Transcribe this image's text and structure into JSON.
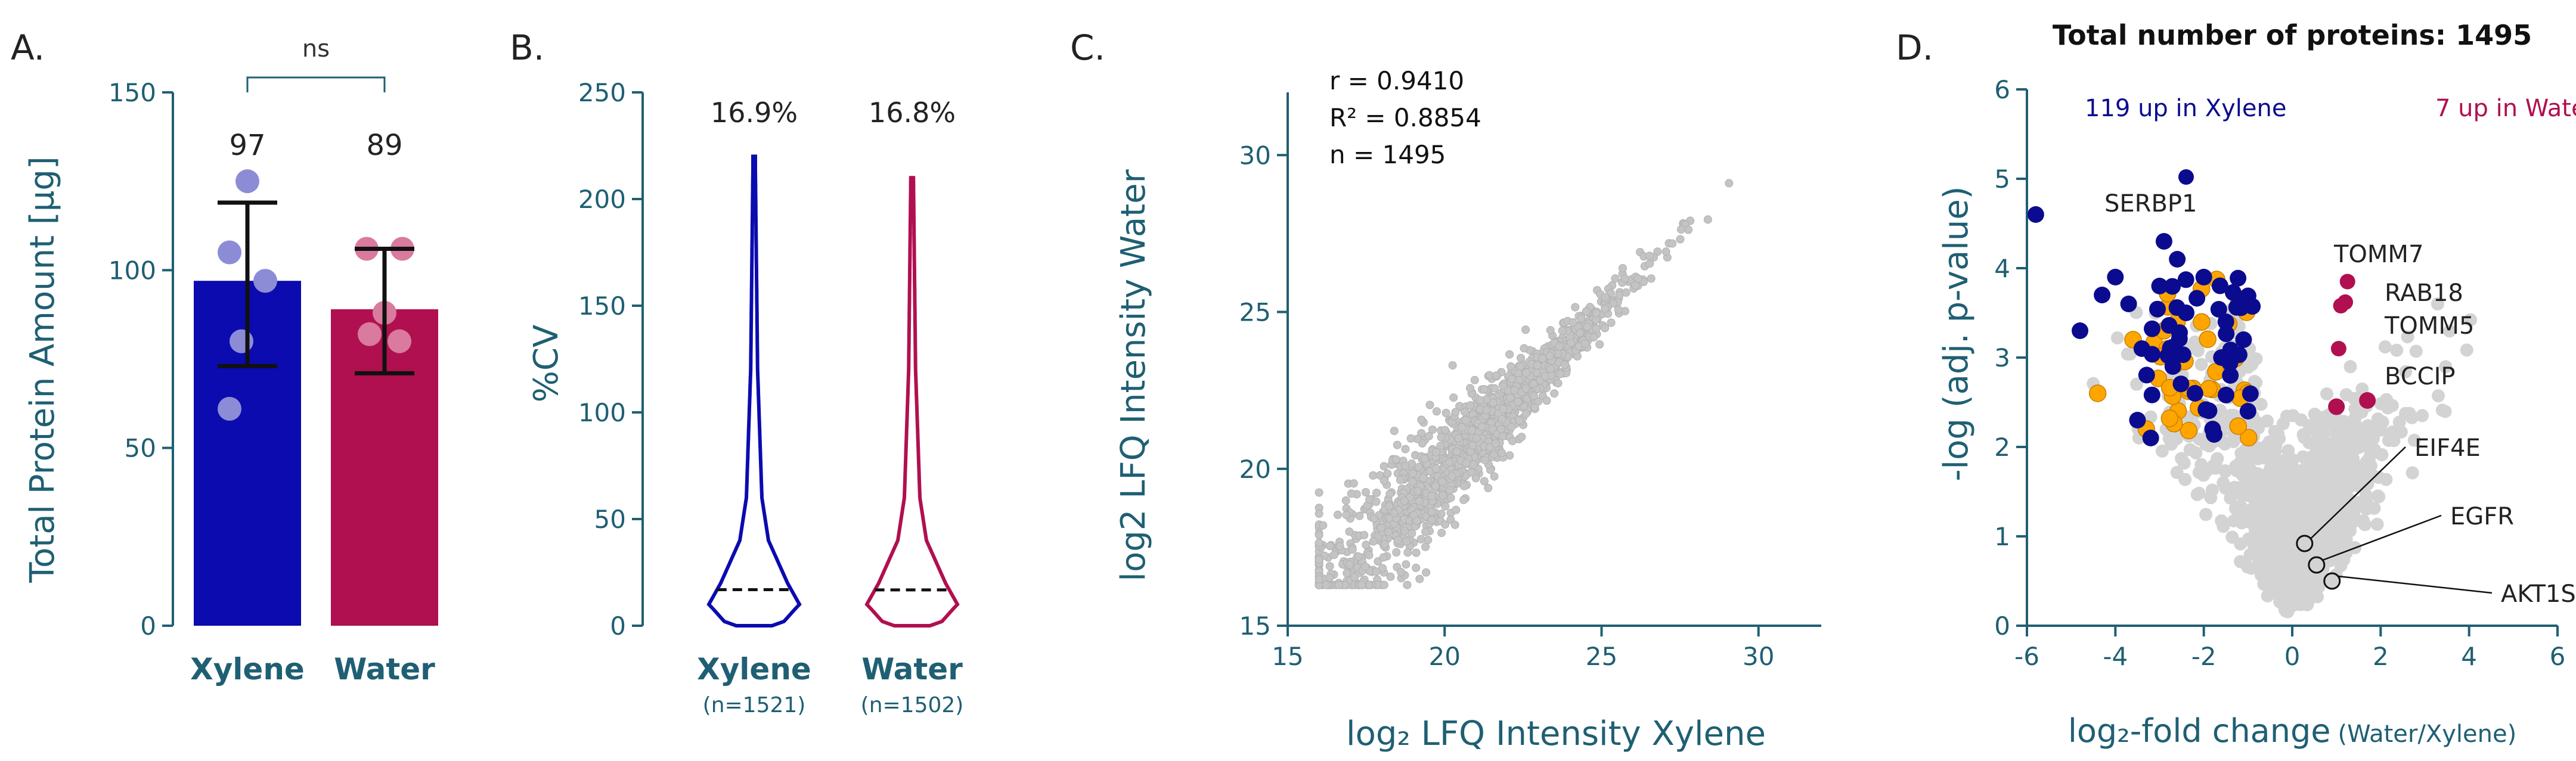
{
  "colors": {
    "axis_teal": "#1F5F73",
    "xylene": "#0B0BB0",
    "xylene_light": "#8C8CD6",
    "water": "#B0104F",
    "water_light": "#D97A9E",
    "orange": "#FFA500",
    "navy": "#0B0B8F",
    "grey": "#C4C4C4"
  },
  "chart_data": [
    {
      "panel": "A.",
      "type": "bar",
      "categories": [
        "Xylene",
        "Water"
      ],
      "values": [
        97,
        89
      ],
      "value_labels": [
        "97",
        "89"
      ],
      "errors": [
        [
          73,
          119
        ],
        [
          71,
          106
        ]
      ],
      "points": [
        [
          125,
          105,
          97,
          80,
          61
        ],
        [
          106,
          106,
          88,
          82,
          80
        ]
      ],
      "significance": "ns",
      "ylabel": "Total Protein Amount [µg]",
      "ylim": [
        0,
        150
      ],
      "yticks": [
        "0",
        "50",
        "100",
        "150"
      ]
    },
    {
      "panel": "B.",
      "type": "violin",
      "categories": [
        "Xylene",
        "Water"
      ],
      "n_labels": [
        "(n=1521)",
        "(n=1502)"
      ],
      "values": [
        16.9,
        16.8
      ],
      "value_labels": [
        "16.9%",
        "16.8%"
      ],
      "max": [
        220,
        210
      ],
      "ylabel": "%CV",
      "ylim": [
        0,
        250
      ],
      "yticks": [
        "0",
        "50",
        "100",
        "150",
        "200",
        "250"
      ]
    },
    {
      "panel": "C.",
      "type": "scatter",
      "stats": [
        "r = 0.9410",
        "R² = 0.8854",
        "n = 1495"
      ],
      "xlabel": "log₂ LFQ Intensity Xylene",
      "ylabel": "log2 LFQ Intensity Water",
      "xlim": [
        15,
        32
      ],
      "ylim": [
        15,
        32
      ],
      "xticks": [
        "15",
        "20",
        "25",
        "30"
      ],
      "yticks": [
        "15",
        "20",
        "25",
        "30"
      ],
      "n_points": 1495,
      "fit": [
        1.0,
        0.0
      ]
    },
    {
      "panel": "D.",
      "type": "scatter",
      "title": "Total number of proteins: 1495",
      "up_xylene_label": "119 up in Xylene",
      "up_water_label": "7 up in Water",
      "xlabel": "log₂-fold change",
      "xlabel_suffix": "(Water/Xylene)",
      "ylabel": "-log (adj. p-value)",
      "xlim": [
        -6,
        6
      ],
      "ylim": [
        0,
        6
      ],
      "xticks": [
        "-6",
        "-4",
        "-2",
        "0",
        "2",
        "4",
        "6"
      ],
      "yticks": [
        "0",
        "1",
        "2",
        "3",
        "4",
        "5",
        "6"
      ],
      "labeled_points": [
        {
          "name": "SERBP1",
          "x": -2.4,
          "y": 5.02,
          "group": "xylene"
        },
        {
          "name": "TOMM7",
          "x": 1.25,
          "y": 3.85,
          "group": "water"
        },
        {
          "name": "RAB18",
          "x": 1.2,
          "y": 3.62,
          "group": "water"
        },
        {
          "name": "TOMM5",
          "x": 1.1,
          "y": 3.58,
          "group": "water"
        },
        {
          "name": "BCCIP",
          "x": 1.05,
          "y": 3.1,
          "group": "water"
        },
        {
          "name": "EIF4E",
          "x": 0.28,
          "y": 0.92,
          "group": "highlight"
        },
        {
          "name": "EGFR",
          "x": 0.55,
          "y": 0.68,
          "group": "highlight"
        },
        {
          "name": "AKT1S1",
          "x": 0.9,
          "y": 0.5,
          "group": "highlight"
        }
      ],
      "water_points": [
        [
          1.7,
          2.52
        ],
        [
          1.0,
          2.45
        ]
      ],
      "xylene_points": [
        [
          -5.8,
          4.6
        ],
        [
          -4.8,
          3.3
        ],
        [
          -4.3,
          3.7
        ],
        [
          -4.0,
          3.9
        ],
        [
          -3.7,
          3.6
        ],
        [
          -3.5,
          2.3
        ],
        [
          -3.2,
          2.1
        ],
        [
          -3.0,
          3.8
        ],
        [
          -2.9,
          4.3
        ],
        [
          -2.6,
          4.1
        ],
        [
          -2.4,
          3.5
        ],
        [
          -2.2,
          2.6
        ],
        [
          -2.0,
          3.9
        ],
        [
          -1.8,
          2.2
        ],
        [
          -1.6,
          3.0
        ],
        [
          -1.4,
          2.8
        ],
        [
          -1.2,
          3.6
        ],
        [
          -1.0,
          2.4
        ],
        [
          -3.4,
          3.1
        ],
        [
          -2.7,
          2.9
        ],
        [
          -1.5,
          3.4
        ],
        [
          -1.1,
          3.2
        ]
      ]
    }
  ],
  "panels": {
    "a": {
      "letter": "A."
    },
    "b": {
      "letter": "B."
    },
    "c": {
      "letter": "C."
    },
    "d": {
      "letter": "D."
    }
  }
}
